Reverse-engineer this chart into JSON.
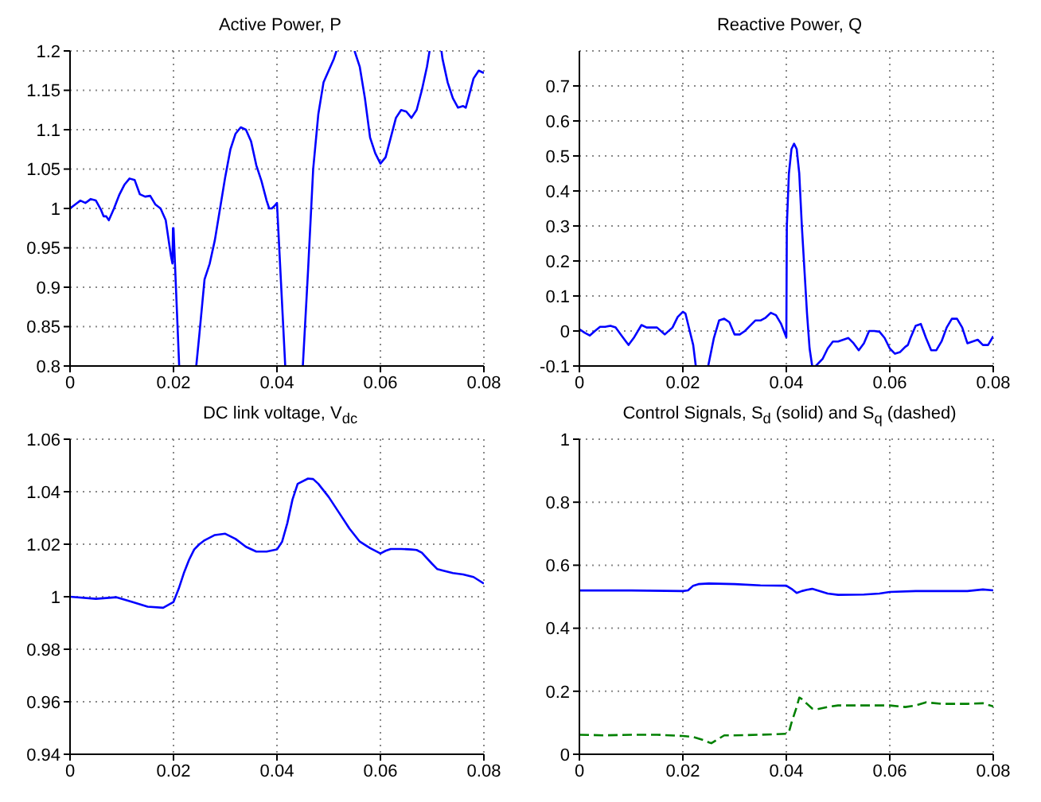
{
  "chart_data": [
    {
      "type": "line",
      "title": "Active Power, P",
      "xlim": [
        0,
        0.08
      ],
      "xticks": [
        0,
        0.02,
        0.04,
        0.06,
        0.08
      ],
      "ylim": [
        0.8,
        1.2
      ],
      "yticks": [
        0.8,
        0.85,
        0.9,
        0.95,
        1,
        1.05,
        1.1,
        1.15,
        1.2
      ],
      "grid": true,
      "series": [
        {
          "color": "#0000ff",
          "x": [
            0,
            0.001,
            0.002,
            0.003,
            0.004,
            0.005,
            0.006,
            0.0065,
            0.007,
            0.0075,
            0.0085,
            0.0095,
            0.0105,
            0.0115,
            0.0125,
            0.0135,
            0.0145,
            0.0155,
            0.0165,
            0.0175,
            0.0185,
            0.0195,
            0.0198,
            0.0199,
            0.02,
            0.0211,
            0.022,
            0.0244,
            0.025,
            0.026,
            0.027,
            0.028,
            0.029,
            0.03,
            0.031,
            0.032,
            0.033,
            0.034,
            0.035,
            0.036,
            0.037,
            0.038,
            0.0385,
            0.039,
            0.0395,
            0.04,
            0.0416,
            0.043,
            0.045,
            0.046,
            0.047,
            0.048,
            0.049,
            0.05,
            0.051,
            0.0515,
            0.053,
            0.055,
            0.056,
            0.057,
            0.058,
            0.059,
            0.06,
            0.061,
            0.062,
            0.063,
            0.064,
            0.065,
            0.066,
            0.067,
            0.068,
            0.069,
            0.0695,
            0.0705,
            0.0718,
            0.072,
            0.073,
            0.074,
            0.075,
            0.076,
            0.0765,
            0.077,
            0.078,
            0.079,
            0.08
          ],
          "values": [
            1.0,
            1.005,
            1.01,
            1.007,
            1.012,
            1.01,
            0.998,
            0.99,
            0.99,
            0.985,
            1.0,
            1.017,
            1.03,
            1.038,
            1.036,
            1.018,
            1.015,
            1.016,
            1.005,
            1.0,
            0.985,
            0.94,
            0.93,
            0.975,
            0.975,
            0.8,
            null,
            0.8,
            0.84,
            0.91,
            0.93,
            0.96,
            1.0,
            1.04,
            1.075,
            1.095,
            1.103,
            1.1,
            1.085,
            1.055,
            1.035,
            1.01,
            1.0,
            1.0,
            1.003,
            1.007,
            0.8,
            null,
            0.8,
            0.92,
            1.05,
            1.12,
            1.16,
            1.175,
            1.19,
            1.2,
            null,
            1.2,
            1.18,
            1.14,
            1.09,
            1.07,
            1.057,
            1.065,
            1.09,
            1.115,
            1.125,
            1.123,
            1.115,
            1.125,
            1.15,
            1.18,
            1.2,
            null,
            1.2,
            1.19,
            1.16,
            1.14,
            1.128,
            1.13,
            1.128,
            1.14,
            1.165,
            1.175,
            1.172
          ]
        }
      ]
    },
    {
      "type": "line",
      "title": "Reactive Power, Q",
      "xlim": [
        0,
        0.08
      ],
      "xticks": [
        0,
        0.02,
        0.04,
        0.06,
        0.08
      ],
      "ylim": [
        -0.1,
        0.8
      ],
      "yticks": [
        -0.1,
        0,
        0.1,
        0.2,
        0.3,
        0.4,
        0.5,
        0.6,
        0.7
      ],
      "grid": true,
      "series": [
        {
          "color": "#0000ff",
          "x": [
            0,
            0.001,
            0.002,
            0.003,
            0.004,
            0.005,
            0.006,
            0.007,
            0.008,
            0.009,
            0.0095,
            0.0105,
            0.012,
            0.013,
            0.014,
            0.015,
            0.0165,
            0.018,
            0.019,
            0.02,
            0.0205,
            0.021,
            0.022,
            0.0225,
            0.0237,
            0.0249,
            0.026,
            0.027,
            0.028,
            0.029,
            0.03,
            0.031,
            0.032,
            0.033,
            0.034,
            0.035,
            0.036,
            0.037,
            0.038,
            0.039,
            0.04,
            0.0401,
            0.0405,
            0.041,
            0.0415,
            0.042,
            0.0425,
            0.043,
            0.044,
            0.0445,
            0.045,
            0.0451,
            0.0457,
            0.047,
            0.048,
            0.049,
            0.05,
            0.051,
            0.052,
            0.053,
            0.054,
            0.055,
            0.056,
            0.057,
            0.058,
            0.059,
            0.06,
            0.061,
            0.062,
            0.063,
            0.0635,
            0.064,
            0.065,
            0.066,
            0.067,
            0.068,
            0.069,
            0.07,
            0.071,
            0.072,
            0.073,
            0.074,
            0.075,
            0.076,
            0.077,
            0.078,
            0.079,
            0.08
          ],
          "values": [
            0.005,
            -0.005,
            -0.013,
            0,
            0.012,
            0.012,
            0.015,
            0.01,
            -0.01,
            -0.03,
            -0.04,
            -0.02,
            0.017,
            0.01,
            0.01,
            0.01,
            -0.01,
            0.01,
            0.04,
            0.055,
            0.05,
            0.02,
            -0.04,
            -0.1,
            null,
            -0.1,
            -0.02,
            0.03,
            0.035,
            0.025,
            -0.01,
            -0.01,
            0,
            0.015,
            0.03,
            0.03,
            0.038,
            0.052,
            0.045,
            0.02,
            -0.018,
            0.3,
            0.45,
            0.52,
            0.535,
            0.52,
            0.45,
            0.3,
            0.05,
            -0.05,
            -0.1,
            null,
            -0.1,
            -0.08,
            -0.05,
            -0.03,
            -0.03,
            -0.025,
            -0.02,
            -0.035,
            -0.055,
            -0.035,
            0,
            0,
            -0.002,
            -0.02,
            -0.05,
            -0.065,
            -0.06,
            -0.045,
            -0.04,
            -0.02,
            0.015,
            0.02,
            -0.02,
            -0.055,
            -0.055,
            -0.03,
            0.01,
            0.035,
            0.035,
            0.01,
            -0.035,
            -0.03,
            -0.025,
            -0.04,
            -0.04,
            -0.015
          ]
        }
      ]
    },
    {
      "type": "line",
      "title": "DC link voltage, V$_{dc}$",
      "xlim": [
        0,
        0.08
      ],
      "xticks": [
        0,
        0.02,
        0.04,
        0.06,
        0.08
      ],
      "ylim": [
        0.94,
        1.06
      ],
      "yticks": [
        0.94,
        0.96,
        0.98,
        1,
        1.02,
        1.04,
        1.06
      ],
      "grid": true,
      "series": [
        {
          "color": "#0000ff",
          "x": [
            0,
            0.005,
            0.009,
            0.012,
            0.015,
            0.018,
            0.02,
            0.021,
            0.022,
            0.023,
            0.024,
            0.025,
            0.026,
            0.028,
            0.03,
            0.032,
            0.034,
            0.036,
            0.038,
            0.04,
            0.041,
            0.042,
            0.043,
            0.044,
            0.046,
            0.047,
            0.048,
            0.05,
            0.052,
            0.054,
            0.056,
            0.058,
            0.06,
            0.061,
            0.062,
            0.064,
            0.066,
            0.067,
            0.068,
            0.07,
            0.071,
            0.072,
            0.074,
            0.076,
            0.078,
            0.08
          ],
          "values": [
            1.0,
            0.9992,
            0.9998,
            0.998,
            0.9962,
            0.9958,
            0.998,
            1.003,
            1.009,
            1.014,
            1.018,
            1.02,
            1.0215,
            1.0235,
            1.024,
            1.022,
            1.019,
            1.0172,
            1.0172,
            1.018,
            1.021,
            1.028,
            1.037,
            1.043,
            1.045,
            1.0448,
            1.043,
            1.038,
            1.032,
            1.026,
            1.021,
            1.0185,
            1.0165,
            1.0175,
            1.0182,
            1.0182,
            1.018,
            1.0178,
            1.0168,
            1.0125,
            1.0105,
            1.01,
            1.009,
            1.0085,
            1.0075,
            1.005
          ]
        }
      ]
    },
    {
      "type": "line",
      "title": "Control Signals, S$_{d}$ (solid) and S$_{q}$ (dashed)",
      "xlim": [
        0,
        0.08
      ],
      "xticks": [
        0,
        0.02,
        0.04,
        0.06,
        0.08
      ],
      "ylim": [
        0,
        1
      ],
      "yticks": [
        0,
        0.2,
        0.4,
        0.6,
        0.8,
        1
      ],
      "grid": true,
      "series": [
        {
          "color": "#0000ff",
          "line_style": "solid",
          "x": [
            0,
            0.01,
            0.02,
            0.021,
            0.022,
            0.023,
            0.025,
            0.03,
            0.035,
            0.04,
            0.041,
            0.042,
            0.043,
            0.044,
            0.045,
            0.046,
            0.048,
            0.05,
            0.055,
            0.058,
            0.06,
            0.065,
            0.07,
            0.075,
            0.078,
            0.08
          ],
          "values": [
            0.52,
            0.52,
            0.518,
            0.52,
            0.535,
            0.54,
            0.542,
            0.54,
            0.536,
            0.535,
            0.525,
            0.512,
            0.518,
            0.522,
            0.525,
            0.52,
            0.51,
            0.506,
            0.507,
            0.51,
            0.515,
            0.518,
            0.518,
            0.518,
            0.523,
            0.52
          ]
        },
        {
          "color": "#008000",
          "line_style": "dashed",
          "x": [
            0,
            0.005,
            0.01,
            0.015,
            0.02,
            0.022,
            0.024,
            0.025,
            0.0255,
            0.027,
            0.028,
            0.03,
            0.035,
            0.04,
            0.0405,
            0.041,
            0.042,
            0.0425,
            0.043,
            0.044,
            0.045,
            0.046,
            0.048,
            0.05,
            0.055,
            0.06,
            0.063,
            0.065,
            0.067,
            0.07,
            0.075,
            0.078,
            0.08
          ],
          "values": [
            0.062,
            0.06,
            0.062,
            0.062,
            0.058,
            0.055,
            0.045,
            0.038,
            0.035,
            0.05,
            0.06,
            0.06,
            0.062,
            0.065,
            0.07,
            0.1,
            0.15,
            0.18,
            0.175,
            0.16,
            0.145,
            0.143,
            0.15,
            0.155,
            0.155,
            0.155,
            0.15,
            0.155,
            0.165,
            0.16,
            0.16,
            0.162,
            0.152
          ]
        }
      ]
    }
  ]
}
